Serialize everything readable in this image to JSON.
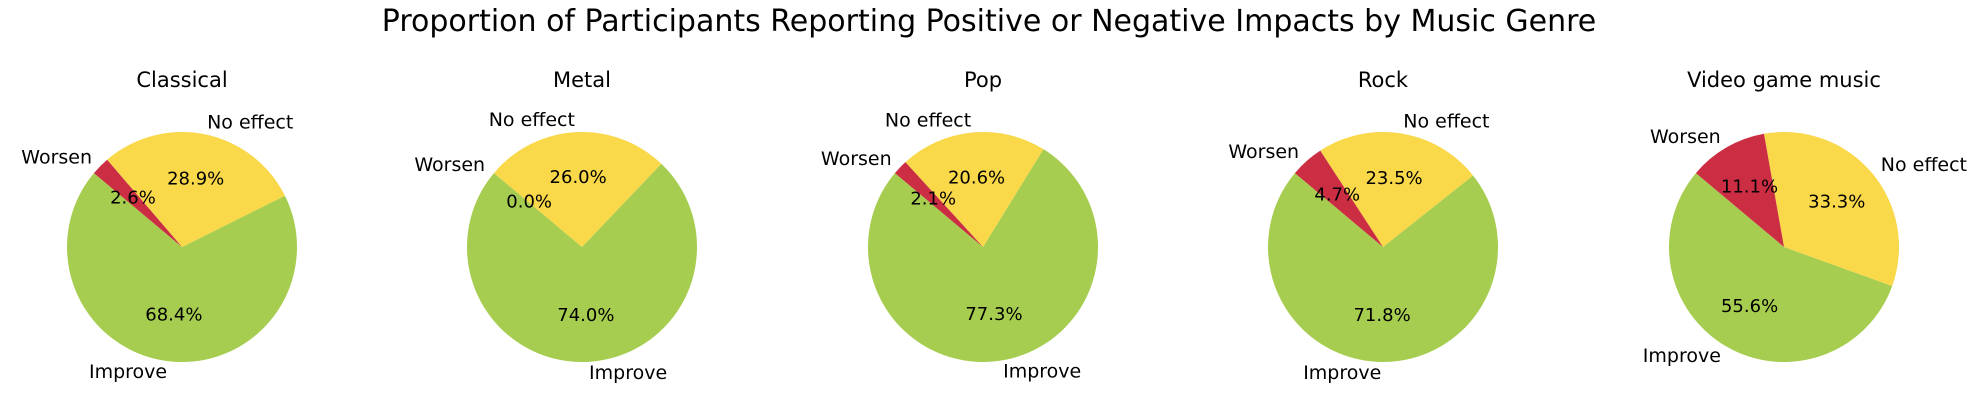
{
  "chart_data": {
    "type": "pie",
    "title": "Proportion of Participants Reporting Positive or Negative Impacts by Music Genre",
    "colors": {
      "Improve": "#a6cd4f",
      "No effect": "#f9d84a",
      "Worsen": "#cb2e43"
    },
    "charts": [
      {
        "title": "Classical",
        "labels": [
          "Improve",
          "No effect",
          "Worsen"
        ],
        "values": [
          68.4,
          28.9,
          2.6
        ],
        "pct_labels": [
          "68.4%",
          "28.9%",
          "2.6%"
        ]
      },
      {
        "title": "Metal",
        "labels": [
          "Improve",
          "No effect",
          "Worsen"
        ],
        "values": [
          74.0,
          26.0,
          0.0
        ],
        "pct_labels": [
          "74.0%",
          "26.0%",
          "0.0%"
        ]
      },
      {
        "title": "Pop",
        "labels": [
          "Improve",
          "No effect",
          "Worsen"
        ],
        "values": [
          77.3,
          20.6,
          2.1
        ],
        "pct_labels": [
          "77.3%",
          "20.6%",
          "2.1%"
        ]
      },
      {
        "title": "Rock",
        "labels": [
          "Improve",
          "No effect",
          "Worsen"
        ],
        "values": [
          71.8,
          23.5,
          4.7
        ],
        "pct_labels": [
          "71.8%",
          "23.5%",
          "4.7%"
        ]
      },
      {
        "title": "Video game music",
        "labels": [
          "Improve",
          "No effect",
          "Worsen"
        ],
        "values": [
          55.6,
          33.3,
          11.1
        ],
        "pct_labels": [
          "55.6%",
          "33.3%",
          "11.1%"
        ]
      }
    ]
  }
}
